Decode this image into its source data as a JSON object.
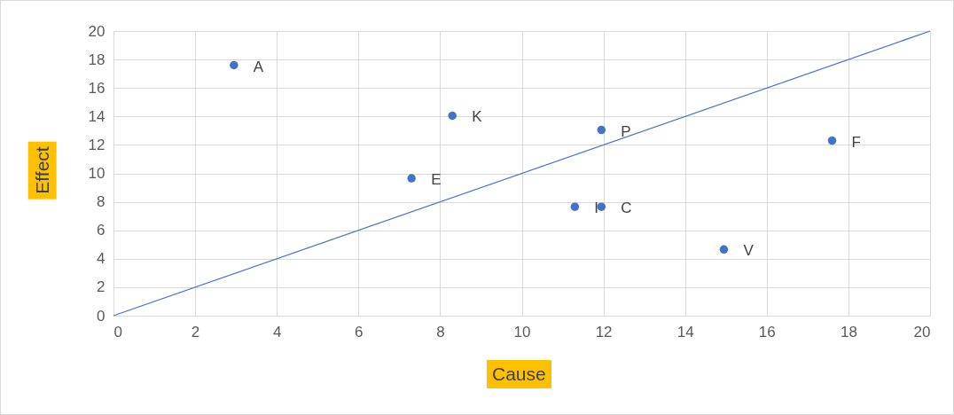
{
  "chart_data": {
    "type": "scatter",
    "xlabel": "Cause",
    "ylabel": "Effect",
    "series": [
      {
        "color": "#4472c4",
        "marker": "circle",
        "x": [
          2.95,
          8.3,
          11.95,
          17.6,
          7.3,
          11.3,
          11.95,
          14.95
        ],
        "values": [
          17.6,
          14.05,
          13.05,
          12.3,
          9.65,
          7.65,
          7.65,
          4.65
        ]
      },
      {
        "type": "line",
        "color": "#4472c4",
        "marker": "none",
        "x": [
          0,
          20
        ],
        "values": [
          0,
          20
        ]
      }
    ],
    "annotations": [
      {
        "text": "A",
        "x": 2.95,
        "y": 17.6
      },
      {
        "text": "K",
        "x": 8.3,
        "y": 14.05
      },
      {
        "text": "P",
        "x": 11.95,
        "y": 13.05
      },
      {
        "text": "F",
        "x": 17.6,
        "y": 12.3
      },
      {
        "text": "E",
        "x": 7.3,
        "y": 9.65
      },
      {
        "text": "I",
        "x": 11.3,
        "y": 7.65
      },
      {
        "text": "C",
        "x": 11.95,
        "y": 7.65
      },
      {
        "text": "V",
        "x": 14.95,
        "y": 4.65
      }
    ],
    "xlim": [
      0,
      20
    ],
    "ylim": [
      0,
      20
    ],
    "xticks": [
      0,
      2,
      4,
      6,
      8,
      10,
      12,
      14,
      16,
      18,
      20
    ],
    "yticks": [
      0,
      2,
      4,
      6,
      8,
      10,
      12,
      14,
      16,
      18,
      20
    ],
    "grid": true
  }
}
